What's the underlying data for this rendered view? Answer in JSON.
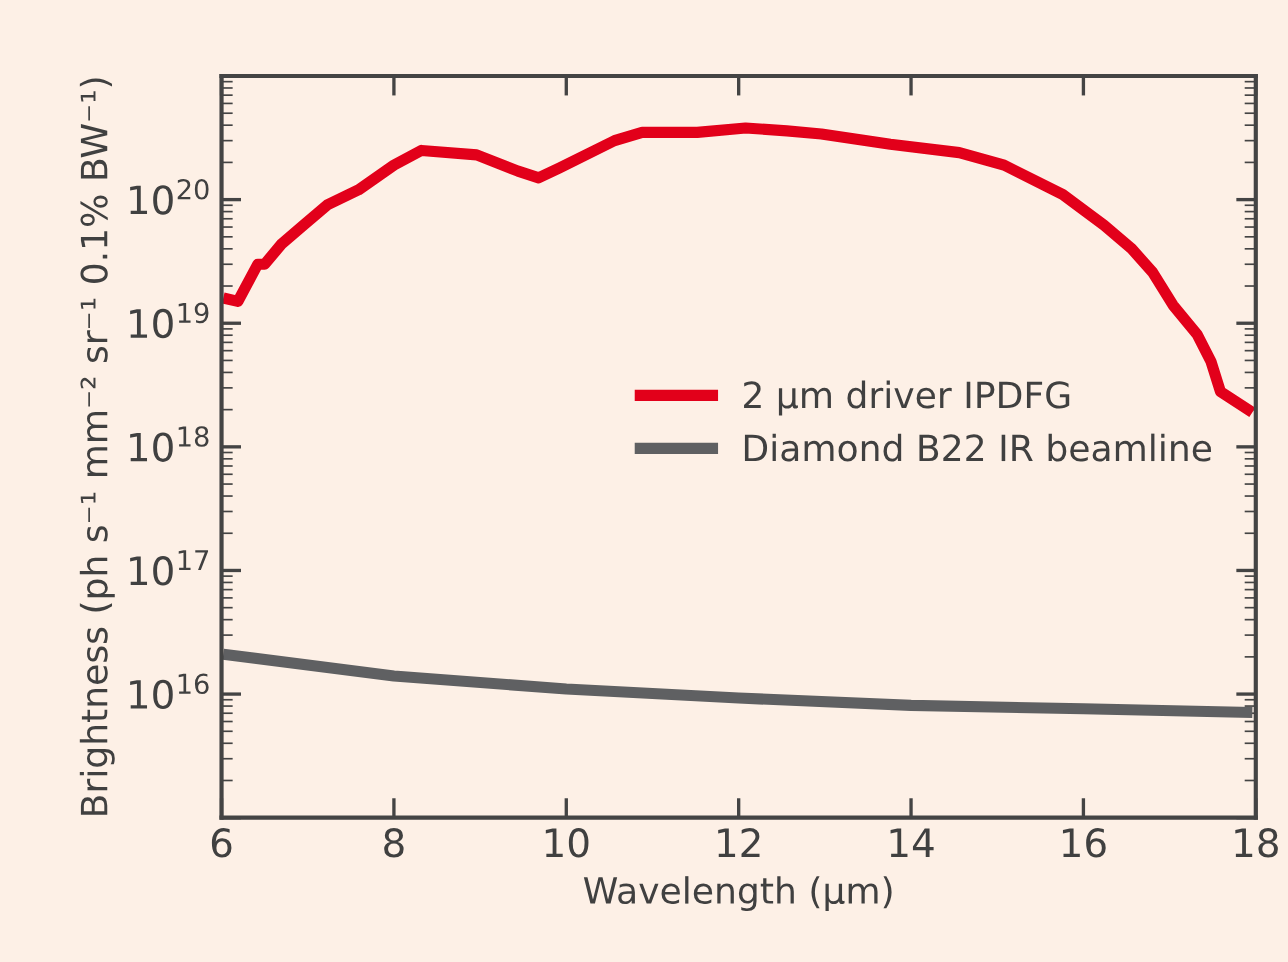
{
  "chart_data": {
    "type": "line",
    "xlabel": "Wavelength (µm)",
    "ylabel": "Brightness (ph s⁻¹ mm⁻² sr⁻¹ 0.1% BW⁻¹)",
    "log": "y",
    "xlim": [
      6,
      18
    ],
    "xticks": [
      6,
      8,
      10,
      12,
      14,
      16,
      18
    ],
    "ylim": [
      1000000000000000.0,
      1e+21
    ],
    "yticks": [
      {
        "value": 1000000000000000.0,
        "label": null
      },
      {
        "value": 1e+16,
        "label": "10$^{16}$"
      },
      {
        "value": 1e+17,
        "label": "10$^{17}$"
      },
      {
        "value": 1e+18,
        "label": "10$^{18}$"
      },
      {
        "value": 1e+19,
        "label": "10$^{19}$"
      },
      {
        "value": 1e+20,
        "label": "10$^{20}$"
      },
      {
        "value": 1e+21,
        "label": null
      }
    ],
    "grid": false,
    "legend": "right",
    "marker": "none",
    "line_style": "solid",
    "series": [
      {
        "name": "2 µm driver IPDFG",
        "color": "#e2001a",
        "x": [
          6.02,
          6.19,
          6.42,
          6.5,
          6.7,
          6.95,
          7.23,
          7.59,
          8.0,
          8.32,
          8.96,
          9.44,
          9.68,
          9.92,
          10.56,
          10.88,
          11.52,
          12.08,
          12.56,
          12.96,
          13.76,
          14.56,
          15.08,
          15.76,
          16.24,
          16.56,
          16.8,
          17.04,
          17.32,
          17.48,
          17.59,
          17.96
        ],
        "values": [
          1.6e+19,
          1.5e+19,
          3e+19,
          3e+19,
          4.4e+19,
          6.2e+19,
          9.1e+19,
          1.2e+20,
          1.9e+20,
          2.5e+20,
          2.3e+20,
          1.7e+20,
          1.5e+20,
          1.8e+20,
          3e+20,
          3.5e+20,
          3.5e+20,
          3.8e+20,
          3.6e+20,
          3.4e+20,
          2.8e+20,
          2.4e+20,
          1.9e+20,
          1.1e+20,
          6.2e+19,
          4e+19,
          2.6e+19,
          1.4e+19,
          8.1e+18,
          4.9e+18,
          2.8e+18,
          1.9e+18
        ]
      },
      {
        "name": "Diamond B22 IR beamline",
        "color": "#5f6062",
        "x": [
          6.02,
          8.0,
          10.0,
          12.0,
          14.0,
          16.0,
          17.96
        ],
        "values": [
          2.1e+16,
          1.4e+16,
          1.1e+16,
          9300000000000000.0,
          8100000000000000.0,
          7600000000000000.0,
          7100000000000000.0
        ]
      }
    ]
  }
}
